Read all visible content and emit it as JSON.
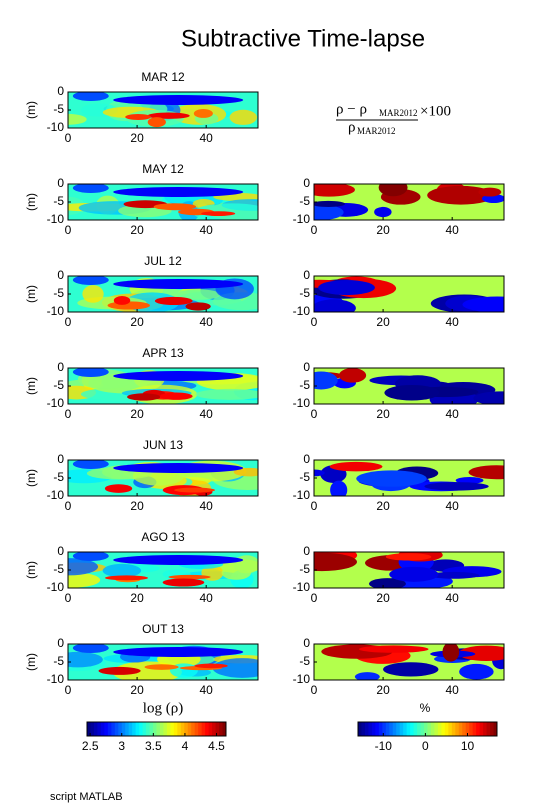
{
  "chart_data": {
    "type": "heatmap",
    "title": "Subtractive Time-lapse",
    "ylabel": "(m)",
    "xlim": [
      0,
      55
    ],
    "xticks": [
      0,
      20,
      40
    ],
    "ylim": [
      -10,
      0
    ],
    "yticks": [
      0,
      -5,
      -10
    ],
    "formula": {
      "numerator": "ρ − ρ",
      "numerator_sub": "MAR2012",
      "factor": "×100",
      "denominator": "ρ",
      "denominator_sub": "MAR2012"
    },
    "panels": [
      {
        "title": "MAR 12",
        "difference_map": false
      },
      {
        "title": "MAY 12",
        "difference_map": true
      },
      {
        "title": "JUL 12",
        "difference_map": true
      },
      {
        "title": "APR 13",
        "difference_map": true
      },
      {
        "title": "JUN 13",
        "difference_map": true
      },
      {
        "title": "AGO 13",
        "difference_map": true
      },
      {
        "title": "OUT 13",
        "difference_map": true
      }
    ],
    "colorbars": [
      {
        "label": "log (ρ)",
        "lim": [
          2.45,
          4.65
        ],
        "ticks": [
          2.5,
          3,
          3.5,
          4,
          4.5
        ]
      },
      {
        "label": "%",
        "lim": [
          -16,
          17
        ],
        "ticks": [
          -10,
          0,
          10
        ]
      }
    ],
    "note": "script MATLAB"
  }
}
